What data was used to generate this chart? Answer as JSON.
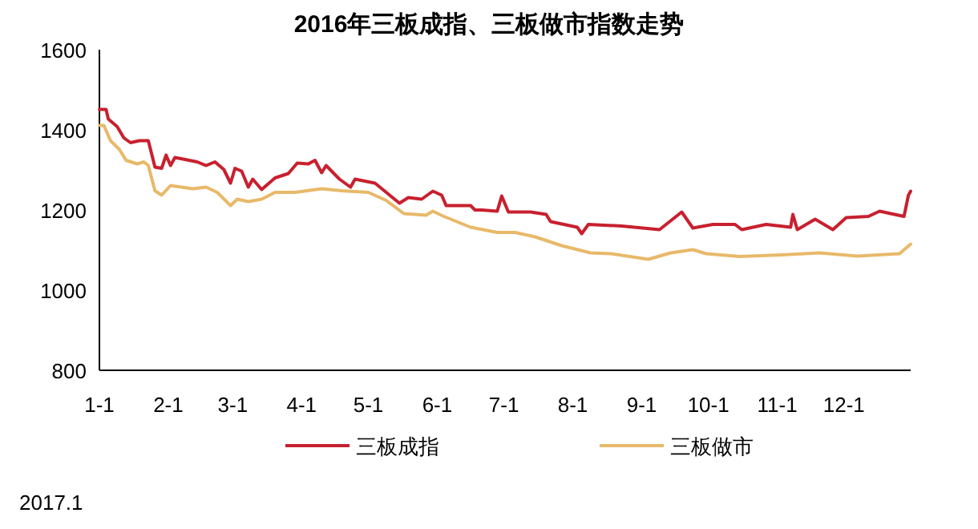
{
  "chart_data": {
    "type": "line",
    "title": "2016年三板成指、三板做市指数走势",
    "annotations": [
      "2017.1"
    ],
    "xlim": [
      "--01-01",
      "--12-31"
    ],
    "xticks": [
      {
        "value": "--01-01",
        "label": "1-1"
      },
      {
        "value": "--02-01",
        "label": "2-1"
      },
      {
        "value": "--03-01",
        "label": "3-1"
      },
      {
        "value": "--04-01",
        "label": "4-1"
      },
      {
        "value": "--05-01",
        "label": "5-1"
      },
      {
        "value": "--06-01",
        "label": "6-1"
      },
      {
        "value": "--07-01",
        "label": "7-1"
      },
      {
        "value": "--08-01",
        "label": "8-1"
      },
      {
        "value": "--09-01",
        "label": "9-1"
      },
      {
        "value": "--10-01",
        "label": "10-1"
      },
      {
        "value": "--11-01",
        "label": "11-1"
      },
      {
        "value": "--12-01",
        "label": "12-1"
      }
    ],
    "ylim": [
      800,
      1600
    ],
    "yticks": [
      800,
      1000,
      1200,
      1400,
      1600
    ],
    "grid": false,
    "legend": "bottom",
    "marker": "none",
    "line_style": "solid",
    "series": [
      {
        "name": "三板成指",
        "color": "#c8202f",
        "x": [
          "--01-01",
          "--01-04",
          "--01-05",
          "--01-09",
          "--01-12",
          "--01-15",
          "--01-19",
          "--01-23",
          "--01-26",
          "--01-29",
          "--01-31",
          "--02-02",
          "--02-04",
          "--02-14",
          "--02-18",
          "--02-22",
          "--02-26",
          "--02-29",
          "--03-02",
          "--03-05",
          "--03-08",
          "--03-10",
          "--03-14",
          "--03-20",
          "--03-26",
          "--03-30",
          "--04-04",
          "--04-07",
          "--04-10",
          "--04-12",
          "--04-18",
          "--04-23",
          "--04-25",
          "--05-04",
          "--05-15",
          "--05-19",
          "--05-25",
          "--05-30",
          "--06-03",
          "--06-05",
          "--06-16",
          "--06-18",
          "--06-21",
          "--06-28",
          "--06-30",
          "--07-03",
          "--07-13",
          "--07-20",
          "--07-22",
          "--08-03",
          "--08-05",
          "--08-08",
          "--08-23",
          "--09-09",
          "--09-19",
          "--09-24",
          "--10-03",
          "--10-13",
          "--10-16",
          "--10-27",
          "--11-07",
          "--11-08",
          "--11-10",
          "--11-18",
          "--11-26",
          "--12-02",
          "--12-12",
          "--12-17",
          "--12-28",
          "--12-30",
          "--12-31"
        ],
        "values": [
          1451,
          1451,
          1427,
          1408,
          1380,
          1368,
          1373,
          1373,
          1307,
          1304,
          1337,
          1311,
          1331,
          1320,
          1311,
          1320,
          1301,
          1267,
          1304,
          1297,
          1257,
          1277,
          1251,
          1280,
          1291,
          1317,
          1315,
          1324,
          1293,
          1311,
          1277,
          1257,
          1277,
          1267,
          1217,
          1231,
          1227,
          1247,
          1237,
          1211,
          1211,
          1200,
          1200,
          1197,
          1235,
          1195,
          1195,
          1189,
          1171,
          1157,
          1141,
          1164,
          1160,
          1151,
          1195,
          1155,
          1164,
          1164,
          1151,
          1164,
          1157,
          1189,
          1151,
          1177,
          1151,
          1181,
          1184,
          1197,
          1184,
          1237,
          1247
        ]
      },
      {
        "name": "三板做市",
        "color": "#e8b96a",
        "x": [
          "--01-01",
          "--01-03",
          "--01-06",
          "--01-10",
          "--01-13",
          "--01-18",
          "--01-21",
          "--01-23",
          "--01-26",
          "--01-29",
          "--02-02",
          "--02-12",
          "--02-18",
          "--02-23",
          "--02-29",
          "--03-03",
          "--03-08",
          "--03-14",
          "--03-20",
          "--03-29",
          "--04-10",
          "--04-19",
          "--05-01",
          "--05-09",
          "--05-17",
          "--05-27",
          "--05-30",
          "--06-04",
          "--06-16",
          "--06-28",
          "--07-06",
          "--07-15",
          "--07-27",
          "--08-09",
          "--08-18",
          "--09-04",
          "--09-14",
          "--09-24",
          "--09-30",
          "--10-15",
          "--11-03",
          "--11-20",
          "--12-07",
          "--12-26",
          "--12-31"
        ],
        "values": [
          1411,
          1411,
          1373,
          1351,
          1324,
          1315,
          1320,
          1311,
          1248,
          1237,
          1261,
          1253,
          1257,
          1244,
          1211,
          1227,
          1221,
          1227,
          1244,
          1244,
          1253,
          1248,
          1244,
          1224,
          1191,
          1187,
          1197,
          1184,
          1157,
          1144,
          1144,
          1133,
          1111,
          1093,
          1091,
          1077,
          1093,
          1101,
          1091,
          1084,
          1088,
          1093,
          1085,
          1091,
          1115
        ]
      }
    ]
  }
}
